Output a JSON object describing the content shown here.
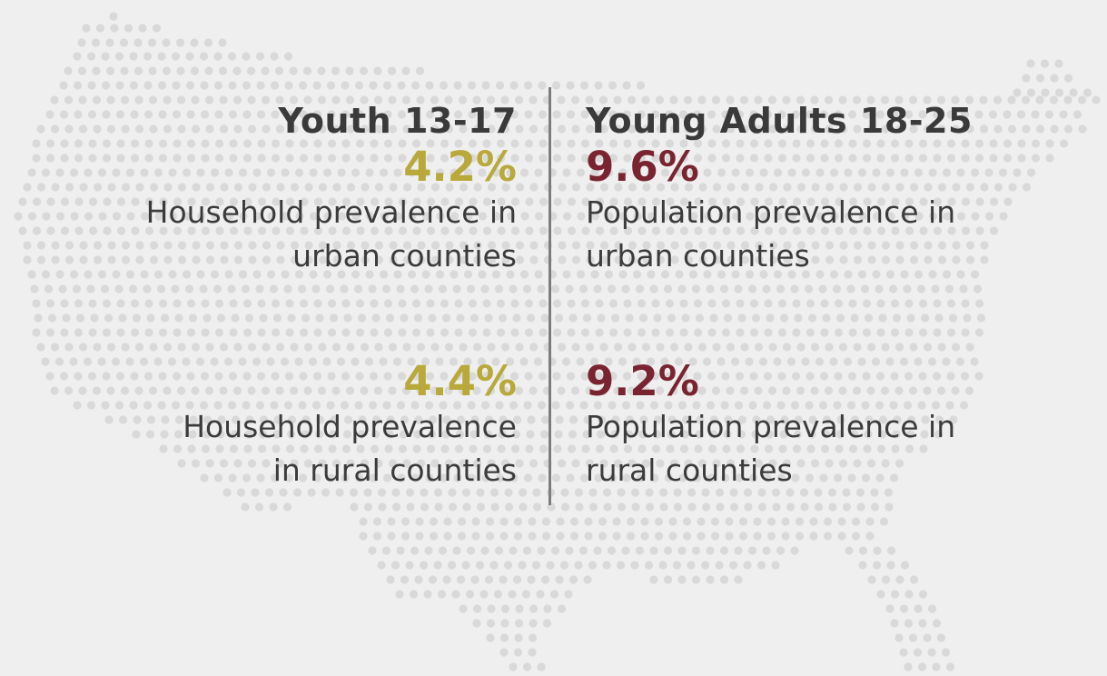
{
  "left": {
    "heading": "Youth 13-17",
    "stats": [
      {
        "value": "4.2%",
        "line1": "Household prevalence in",
        "line2": "urban counties"
      },
      {
        "value": "4.4%",
        "line1": "Household prevalence",
        "line2": "in rural counties"
      }
    ]
  },
  "right": {
    "heading": "Young Adults 18-25",
    "stats": [
      {
        "value": "9.6%",
        "line1": "Population prevalence in",
        "line2": "urban counties"
      },
      {
        "value": "9.2%",
        "line1": "Population prevalence in",
        "line2": "rural counties"
      }
    ]
  },
  "colors": {
    "background": "#efefef",
    "map_dots": "#d9d9d9",
    "youth_accent": "#b9a83a",
    "adult_accent": "#7a2432",
    "text": "#3b3b3b",
    "divider": "#7d7d7d"
  }
}
